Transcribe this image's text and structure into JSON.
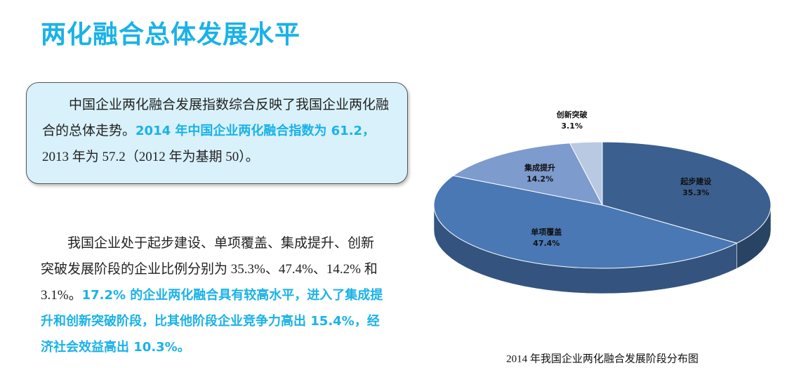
{
  "header": {
    "title": "两化融合总体发展水平"
  },
  "paragraphs": [
    {
      "runs": [
        {
          "text": "中国企业两化融合发展指数综合反映了我国企业两化融合的总体走势。",
          "highlight": false
        },
        {
          "text": "2014 年中国企业两化融合指数为 61.2，",
          "highlight": true
        },
        {
          "text": "2013 年为 57.2（2012 年为基期 50）。",
          "highlight": false
        }
      ]
    },
    {
      "runs": [
        {
          "text": "我国企业处于起步建设、单项覆盖、集成提升、创新突破发展阶段的企业比例分别为 35.3%、47.4%、14.2% 和 3.1%。",
          "highlight": false
        },
        {
          "text": "17.2% 的企业两化融合具有较高水平，进入了集成提升和创新突破阶段，比其他阶段企业竞争力高出 15.4%，经济社会效益高出 10.3%。",
          "highlight": true
        }
      ]
    }
  ],
  "chart_data": {
    "type": "pie",
    "title": "2014 年我国企业两化融合发展阶段分布图",
    "categories": [
      "起步建设",
      "单项覆盖",
      "集成提升",
      "创新突破"
    ],
    "values": [
      35.3,
      47.4,
      14.2,
      3.1
    ],
    "value_labels": [
      "35.3%",
      "47.4%",
      "14.2%",
      "3.1%"
    ],
    "colors": [
      "#3b5f8f",
      "#4a78b5",
      "#7d9bcc",
      "#b9c9e2"
    ]
  }
}
